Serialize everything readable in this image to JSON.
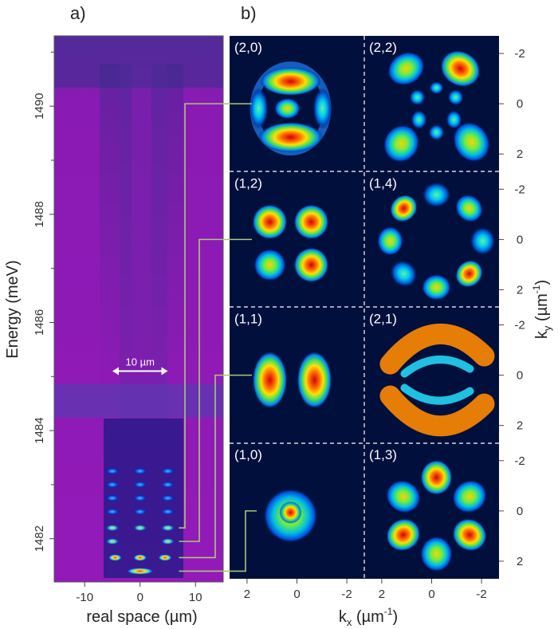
{
  "colors": {
    "panel_a_bg": "#8e1ab6",
    "panel_b_bg": "#000f3c",
    "connector": "#a8c878",
    "divider": "#ffffff"
  },
  "chart_data": [
    {
      "type": "heatmap",
      "panel_label": "a)",
      "description": "real-space resolved photoluminescence spectrum",
      "xlabel": "real space (µm)",
      "ylabel": "Energy (meV)",
      "xlim": [
        -15.5,
        15
      ],
      "ylim": [
        1481.2,
        1491.3
      ],
      "x_ticks": [
        -10,
        0,
        10
      ],
      "x_tick_labels": [
        "-10",
        "0",
        "10"
      ],
      "y_ticks": [
        1482,
        1484,
        1486,
        1488,
        1490
      ],
      "y_tick_labels": [
        "1482",
        "1484",
        "1486",
        "1488",
        "1490"
      ],
      "y_minor_ticks": [
        1483,
        1485,
        1487,
        1489,
        1491
      ],
      "scale_bar": {
        "label": "10 µm",
        "from": -5,
        "to": 5,
        "energy": 1485.1
      },
      "emission_lines": [
        {
          "energy": 1481.4,
          "mode": "(1,0)",
          "x_extent": [
            -2,
            2
          ]
        },
        {
          "energy": 1481.65,
          "mode": "(1,1)",
          "x_extent": [
            -4.5,
            4.5
          ]
        },
        {
          "energy": 1481.95,
          "mode": "(1,2)",
          "x_extent": [
            -5,
            5
          ]
        },
        {
          "energy": 1482.2,
          "mode": "(2,0)",
          "x_extent": [
            -5,
            5
          ]
        },
        {
          "energy": 1482.5,
          "mode": "",
          "x_extent": [
            -5,
            5
          ]
        },
        {
          "energy": 1482.75,
          "mode": "",
          "x_extent": [
            -5,
            5
          ]
        },
        {
          "energy": 1483.0,
          "mode": "",
          "x_extent": [
            -5,
            5
          ]
        },
        {
          "energy": 1483.25,
          "mode": "",
          "x_extent": [
            -5,
            5
          ]
        }
      ],
      "background_band": {
        "energy": 1484.55,
        "label": ""
      }
    },
    {
      "type": "heatmap",
      "panel_label": "b)",
      "description": "momentum-space emission patterns of confined modes",
      "xlabel": "k",
      "xlabel_sub": "x",
      "xlabel_unit": " (µm",
      "xlabel_exp": "-1",
      "xlabel_close": ")",
      "ylabel": "k",
      "ylabel_sub": "y",
      "ylabel_unit": " (µm",
      "ylabel_exp": "-1",
      "ylabel_close": ")",
      "xlim": [
        2.7,
        -2.7
      ],
      "ylim": [
        -2.7,
        2.7
      ],
      "x_ticks": [
        2,
        0,
        -2
      ],
      "x_tick_labels": [
        "2",
        "0",
        "-2",
        "2",
        "0",
        "-2"
      ],
      "y_ticks": [
        -2,
        0,
        2
      ],
      "y_tick_labels": [
        "-2",
        "0",
        "2"
      ],
      "modes": [
        {
          "label": "(2,0)",
          "row": 0,
          "col": 0,
          "pattern": "ring-center",
          "energy": 1482.2
        },
        {
          "label": "(2,2)",
          "row": 0,
          "col": 1,
          "pattern": "lobes-mixed",
          "energy": null
        },
        {
          "label": "(1,2)",
          "row": 1,
          "col": 0,
          "pattern": "four-lobes",
          "energy": 1481.95
        },
        {
          "label": "(1,4)",
          "row": 1,
          "col": 1,
          "pattern": "eight-lobes",
          "energy": null
        },
        {
          "label": "(1,1)",
          "row": 2,
          "col": 0,
          "pattern": "two-lobes",
          "energy": 1481.65
        },
        {
          "label": "(2,1)",
          "row": 2,
          "col": 1,
          "pattern": "arcs",
          "energy": null
        },
        {
          "label": "(1,0)",
          "row": 3,
          "col": 0,
          "pattern": "single-spot",
          "energy": 1481.4
        },
        {
          "label": "(1,3)",
          "row": 3,
          "col": 1,
          "pattern": "six-lobes",
          "energy": null
        }
      ]
    }
  ]
}
